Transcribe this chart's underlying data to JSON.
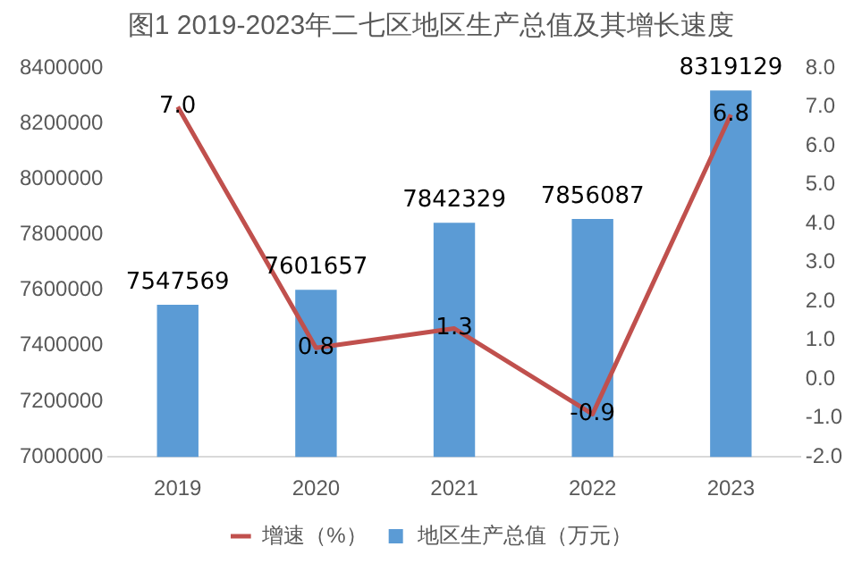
{
  "chart_data": {
    "type": "bar",
    "title": "图1 2019-2023年二七区地区生产总值及其增长速度",
    "categories": [
      "2019",
      "2020",
      "2021",
      "2022",
      "2023"
    ],
    "series": [
      {
        "name": "地区生产总值（万元）",
        "color": "#5b9bd5",
        "values": [
          7547569,
          7601657,
          7842329,
          7856087,
          8319129
        ]
      },
      {
        "name": "增速（%）",
        "type": "line",
        "axis": "y2",
        "color": "#c0504d",
        "values": [
          7.0,
          0.8,
          1.3,
          -0.9,
          6.8
        ],
        "value_labels": [
          "7.0",
          "0.8",
          "1.3",
          "-0.9",
          "6.8"
        ]
      }
    ],
    "ylim": [
      7000000,
      8400000
    ],
    "yticks": [
      7000000,
      7200000,
      7400000,
      7600000,
      7800000,
      8000000,
      8200000,
      8400000
    ],
    "y2lim": [
      -2.0,
      8.0
    ],
    "y2ticks": [
      {
        "value": -2,
        "label": "-2.0"
      },
      {
        "value": -1,
        "label": "-1.0"
      },
      {
        "value": 0,
        "label": "0.0"
      },
      {
        "value": 1,
        "label": "1.0"
      },
      {
        "value": 2,
        "label": "2.0"
      },
      {
        "value": 3,
        "label": "3.0"
      },
      {
        "value": 4,
        "label": "4.0"
      },
      {
        "value": 5,
        "label": "5.0"
      },
      {
        "value": 6,
        "label": "6.0"
      },
      {
        "value": 7,
        "label": "7.0"
      },
      {
        "value": 8,
        "label": "8.0"
      }
    ],
    "data_labels": true,
    "legend": "bottom",
    "marker": "none",
    "line_style": "solid"
  }
}
